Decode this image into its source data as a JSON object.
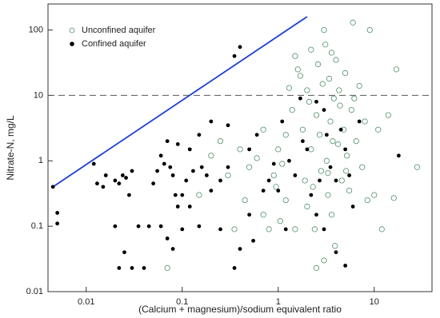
{
  "chart_data": {
    "type": "scatter",
    "xlabel": "(Calcium + magnesium)/sodium equivalent ratio",
    "ylabel": "Nitrate-N, mg/L",
    "xscale": "log",
    "yscale": "log",
    "xlim": [
      0.004,
      40
    ],
    "ylim": [
      0.01,
      250
    ],
    "xticks": [
      0.01,
      0.1,
      1,
      10
    ],
    "yticks": [
      0.01,
      0.1,
      1,
      10,
      100
    ],
    "legend": "upper left",
    "reference_line": {
      "x": [
        0.0045,
        2
      ],
      "y": [
        0.4,
        160
      ],
      "color": "#1f3fd6"
    },
    "hline": {
      "y": 10,
      "color": "#555555"
    },
    "series": [
      {
        "name": "Unconfined aquifer",
        "color": "#4f8f6a",
        "marker": "open",
        "x": [
          0.07,
          0.15,
          0.2,
          0.25,
          0.3,
          0.4,
          0.5,
          0.6,
          0.7,
          0.8,
          0.9,
          1,
          1.1,
          1.2,
          1.3,
          1.4,
          1.5,
          1.6,
          1.7,
          1.8,
          1.9,
          2,
          2.1,
          2.2,
          2.3,
          2.4,
          2.5,
          2.6,
          2.7,
          2.8,
          2.9,
          3,
          3.1,
          3.2,
          3.3,
          3.4,
          3.5,
          3.6,
          3.7,
          3.8,
          3.9,
          4,
          4.2,
          4.4,
          4.6,
          4.8,
          5,
          5.2,
          5.5,
          5.8,
          6,
          6.5,
          7,
          7.5,
          8,
          8.5,
          9,
          10,
          11,
          12,
          14,
          16,
          17,
          28,
          2,
          2.5,
          3,
          1.5,
          1.2,
          0.95,
          0.7,
          0.45,
          2.2,
          3.6,
          4.3,
          5.1,
          6.2,
          0.35,
          1.05,
          3.3
        ],
        "y": [
          0.023,
          0.3,
          1.2,
          2,
          0.6,
          1.5,
          0.8,
          1.1,
          0.15,
          0.09,
          0.6,
          1.5,
          0.9,
          0.25,
          13,
          6,
          40,
          25,
          20,
          3,
          0.5,
          12,
          8,
          1.5,
          0.4,
          0.09,
          5,
          30,
          2.5,
          0.7,
          15,
          100,
          60,
          1,
          0.3,
          18,
          4,
          0.15,
          2,
          9,
          0.05,
          35,
          1.8,
          7,
          0.5,
          3,
          22,
          1.2,
          0.35,
          6,
          130,
          2,
          14,
          0.8,
          4,
          0.25,
          100,
          0.3,
          3,
          0.09,
          5,
          0.27,
          25,
          0.8,
          0.2,
          0.023,
          0.03,
          0.09,
          2.5,
          0.4,
          3,
          0.25,
          50,
          45,
          12,
          0.7,
          9,
          0.09,
          0.12,
          0.65
        ]
      },
      {
        "name": "Confined aquifer",
        "color": "#000000",
        "marker": "filled",
        "x": [
          0.0045,
          0.005,
          0.005,
          0.012,
          0.013,
          0.015,
          0.016,
          0.02,
          0.022,
          0.024,
          0.026,
          0.028,
          0.03,
          0.02,
          0.025,
          0.022,
          0.03,
          0.04,
          0.035,
          0.045,
          0.05,
          0.055,
          0.06,
          0.065,
          0.07,
          0.075,
          0.08,
          0.085,
          0.09,
          0.1,
          0.11,
          0.12,
          0.06,
          0.07,
          0.08,
          0.1,
          0.15,
          0.2,
          0.25,
          0.3,
          0.35,
          0.4,
          0.3,
          0.2,
          0.15,
          0.25,
          0.35,
          0.4,
          0.5,
          0.6,
          0.7,
          0.8,
          0.9,
          1,
          1.1,
          1.3,
          1.5,
          1.8,
          2,
          2.2,
          2.5,
          3,
          3.5,
          4,
          4.5,
          5,
          5.5,
          6,
          7,
          3,
          2.5,
          4,
          5,
          18,
          0.12,
          0.13,
          0.5,
          1.2,
          0.55,
          0.18,
          0.09,
          0.16,
          3.2,
          1.7,
          2.7
        ],
        "y": [
          0.4,
          0.16,
          0.11,
          0.9,
          0.45,
          0.4,
          0.6,
          0.5,
          0.45,
          0.6,
          0.55,
          0.3,
          0.7,
          0.1,
          0.04,
          0.023,
          0.023,
          0.023,
          0.1,
          0.1,
          0.45,
          0.7,
          1.2,
          0.9,
          2,
          0.8,
          0.6,
          0.3,
          0.2,
          0.3,
          0.5,
          0.2,
          0.1,
          0.065,
          0.045,
          0.09,
          0.1,
          0.35,
          0.5,
          0.8,
          40,
          55,
          3.5,
          4,
          2.5,
          0.09,
          0.023,
          0.045,
          1.5,
          2.5,
          0.35,
          0.5,
          0.9,
          0.35,
          4,
          1,
          0.6,
          2,
          1.5,
          0.3,
          0.15,
          0.09,
          0.8,
          0.5,
          3,
          1.5,
          0.6,
          0.2,
          4,
          6,
          8,
          0.04,
          0.025,
          1.2,
          1.5,
          0.7,
          0.15,
          0.09,
          0.06,
          0.6,
          1.8,
          0.8,
          2.5,
          9,
          0.5
        ]
      }
    ]
  }
}
